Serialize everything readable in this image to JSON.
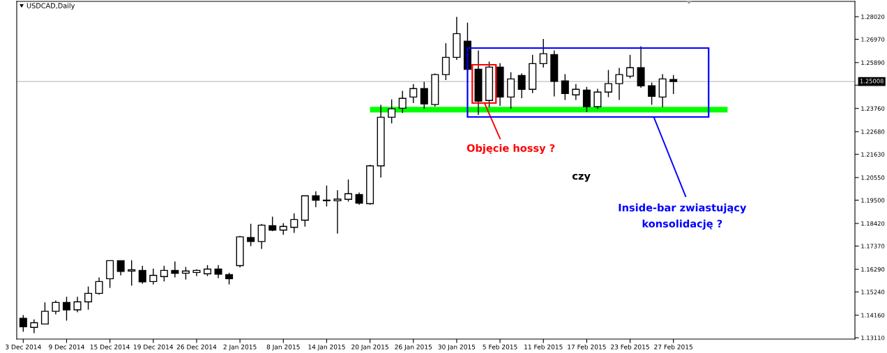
{
  "chart_data": {
    "type": "candlestick",
    "title": "USDCAD,Daily",
    "categories": [
      "3 Dec 2014",
      null,
      null,
      null,
      "9 Dec 2014",
      null,
      null,
      null,
      "15 Dec 2014",
      null,
      null,
      null,
      "19 Dec 2014",
      null,
      null,
      null,
      "26 Dec 2014",
      null,
      null,
      null,
      "2 Jan 2015",
      null,
      null,
      null,
      "8 Jan 2015",
      null,
      null,
      null,
      "14 Jan 2015",
      null,
      null,
      null,
      "20 Jan 2015",
      null,
      null,
      null,
      "26 Jan 2015",
      null,
      null,
      null,
      "30 Jan 2015",
      null,
      null,
      null,
      "5 Feb 2015",
      null,
      null,
      null,
      "11 Feb 2015",
      null,
      null,
      null,
      "17 Feb 2015",
      null,
      null,
      null,
      "23 Feb 2015",
      null,
      null,
      null,
      "27 Feb 2015",
      null,
      null,
      null,
      null,
      null,
      null,
      null,
      null,
      null,
      null,
      null,
      null,
      null,
      null,
      null,
      null
    ],
    "ohlc": [
      [
        1.1401,
        1.1414,
        1.1341,
        1.1362
      ],
      [
        1.1359,
        1.1394,
        1.1335,
        1.1381
      ],
      [
        1.1375,
        1.1473,
        1.1375,
        1.1434
      ],
      [
        1.1434,
        1.1482,
        1.1422,
        1.1475
      ],
      [
        1.1475,
        1.1499,
        1.1393,
        1.1441
      ],
      [
        1.1441,
        1.1499,
        1.1432,
        1.1478
      ],
      [
        1.1478,
        1.1547,
        1.1444,
        1.1517
      ],
      [
        1.1517,
        1.1589,
        1.1513,
        1.1572
      ],
      [
        1.1585,
        1.1669,
        1.1545,
        1.1669
      ],
      [
        1.1669,
        1.1669,
        1.1603,
        1.1619
      ],
      [
        1.1621,
        1.1669,
        1.1555,
        1.1627
      ],
      [
        1.1624,
        1.1643,
        1.1564,
        1.1571
      ],
      [
        1.1572,
        1.163,
        1.1561,
        1.1601
      ],
      [
        1.1595,
        1.1643,
        1.1575,
        1.1624
      ],
      [
        1.1624,
        1.1663,
        1.1593,
        1.161
      ],
      [
        1.1611,
        1.1637,
        1.1584,
        1.1621
      ],
      [
        1.1614,
        1.1627,
        1.16,
        1.1624
      ],
      [
        1.1608,
        1.1646,
        1.16,
        1.163
      ],
      [
        1.163,
        1.1646,
        1.159,
        1.1606
      ],
      [
        1.1604,
        1.1611,
        1.1561,
        1.1585
      ],
      [
        1.1646,
        1.1782,
        1.164,
        1.178
      ],
      [
        1.1776,
        1.1838,
        1.1739,
        1.1758
      ],
      [
        1.1758,
        1.1837,
        1.1726,
        1.1834
      ],
      [
        1.1831,
        1.1871,
        1.1808,
        1.1811
      ],
      [
        1.1811,
        1.1841,
        1.1791,
        1.1828
      ],
      [
        1.1824,
        1.1886,
        1.18,
        1.186
      ],
      [
        1.1857,
        1.197,
        1.1829,
        1.197
      ],
      [
        1.197,
        1.1989,
        1.192,
        1.195
      ],
      [
        1.195,
        1.2016,
        1.1923,
        1.1947
      ],
      [
        1.1947,
        1.1994,
        1.1797,
        1.1955
      ],
      [
        1.1954,
        1.2044,
        1.1946,
        1.198
      ],
      [
        1.1976,
        1.1983,
        1.1931,
        1.1936
      ],
      [
        1.1934,
        1.2112,
        1.1931,
        1.2109
      ],
      [
        1.2109,
        1.2391,
        1.2057,
        1.2335
      ],
      [
        1.2335,
        1.2416,
        1.2309,
        1.2374
      ],
      [
        1.2377,
        1.2455,
        1.2357,
        1.2423
      ],
      [
        1.2429,
        1.2487,
        1.2403,
        1.2468
      ],
      [
        1.2468,
        1.2497,
        1.2377,
        1.2397
      ],
      [
        1.2394,
        1.2536,
        1.2387,
        1.2533
      ],
      [
        1.2533,
        1.2677,
        1.251,
        1.2613
      ],
      [
        1.2613,
        1.2799,
        1.2604,
        1.2723
      ],
      [
        1.2688,
        1.2772,
        1.2558,
        1.2558
      ],
      [
        1.2558,
        1.2643,
        1.2348,
        1.241
      ],
      [
        1.2413,
        1.2591,
        1.2384,
        1.2568
      ],
      [
        1.2568,
        1.2584,
        1.239,
        1.2429
      ],
      [
        1.2429,
        1.2542,
        1.2377,
        1.2513
      ],
      [
        1.2529,
        1.2536,
        1.2426,
        1.2465
      ],
      [
        1.2465,
        1.2623,
        1.2449,
        1.2584
      ],
      [
        1.2584,
        1.2696,
        1.2568,
        1.263
      ],
      [
        1.2626,
        1.2643,
        1.2434,
        1.2502
      ],
      [
        1.2504,
        1.2533,
        1.2418,
        1.2445
      ],
      [
        1.2439,
        1.2487,
        1.2418,
        1.2465
      ],
      [
        1.2461,
        1.2474,
        1.2361,
        1.2384
      ],
      [
        1.2384,
        1.2465,
        1.2376,
        1.2452
      ],
      [
        1.2452,
        1.2552,
        1.2431,
        1.2491
      ],
      [
        1.2491,
        1.2562,
        1.2418,
        1.2533
      ],
      [
        1.2526,
        1.2623,
        1.2518,
        1.2565
      ],
      [
        1.2565,
        1.2662,
        1.2474,
        1.2481
      ],
      [
        1.2481,
        1.2494,
        1.2395,
        1.2432
      ],
      [
        1.2429,
        1.2533,
        1.2384,
        1.2513
      ],
      [
        1.251,
        1.2529,
        1.2445,
        1.2501
      ],
      null,
      null,
      null,
      null,
      null,
      null,
      null,
      null,
      null,
      null,
      null,
      null,
      null,
      null,
      null,
      null
    ],
    "colors": [
      "#000000",
      "#ffffff",
      "#ffffff",
      "#ffffff",
      "#000000",
      "#ffffff",
      "#ffffff",
      "#ffffff",
      "#ffffff",
      "#000000",
      "#ffffff",
      "#000000",
      "#ffffff",
      "#ffffff",
      "#000000",
      "#ffffff",
      "#ffffff",
      "#ffffff",
      "#000000",
      "#000000",
      "#ffffff",
      "#000000",
      "#ffffff",
      "#000000",
      "#ffffff",
      "#ffffff",
      "#ffffff",
      "#000000",
      "#000000",
      "#ffffff",
      "#ffffff",
      "#000000",
      "#ffffff",
      "#ffffff",
      "#ffffff",
      "#ffffff",
      "#ffffff",
      "#000000",
      "#ffffff",
      "#ffffff",
      "#ffffff",
      "#000000",
      "#000000",
      "#ffffff",
      "#000000",
      "#ffffff",
      "#000000",
      "#ffffff",
      "#ffffff",
      "#000000",
      "#000000",
      "#ffffff",
      "#000000",
      "#ffffff",
      "#ffffff",
      "#ffffff",
      "#ffffff",
      "#000000",
      "#000000",
      "#ffffff",
      "#000000",
      null,
      null,
      null,
      null,
      null,
      null,
      null,
      null,
      null,
      null,
      null,
      null,
      null,
      null,
      null,
      null
    ],
    "series": [
      {
        "type": "line",
        "color": "#00ff00",
        "values": [
          null,
          null,
          null,
          null,
          null,
          null,
          null,
          null,
          null,
          null,
          null,
          null,
          null,
          null,
          null,
          null,
          null,
          null,
          null,
          null,
          null,
          null,
          null,
          null,
          null,
          null,
          null,
          null,
          null,
          null,
          null,
          null,
          1.237,
          1.237,
          1.237,
          1.237,
          1.237,
          1.237,
          1.237,
          1.237,
          1.237,
          1.237,
          1.237,
          1.237,
          1.237,
          1.237,
          1.237,
          1.237,
          1.237,
          1.237,
          1.237,
          1.237,
          1.237,
          1.237,
          1.237,
          1.237,
          1.237,
          1.237,
          1.237,
          1.237,
          1.237,
          1.237,
          1.237,
          1.237,
          1.237,
          1.237,
          null,
          null,
          null,
          null,
          null,
          null,
          null,
          null,
          null,
          null,
          null
        ]
      }
    ],
    "ref_lines": [
      {
        "axis": "y",
        "value": 1.25008,
        "label": "1.25008",
        "color": "#c0c0c0"
      }
    ],
    "ylim": [
      1.1305,
      1.2873
    ],
    "yticks": [
      {
        "value": 1.1311,
        "label": "1.13110"
      },
      {
        "value": 1.1416,
        "label": "1.14160"
      },
      {
        "value": 1.1524,
        "label": "1.15240"
      },
      {
        "value": 1.1629,
        "label": "1.16290"
      },
      {
        "value": 1.1737,
        "label": "1.17370"
      },
      {
        "value": 1.1842,
        "label": "1.18420"
      },
      {
        "value": 1.195,
        "label": "1.19500"
      },
      {
        "value": 1.2055,
        "label": "1.20550"
      },
      {
        "value": 1.2163,
        "label": "1.21630"
      },
      {
        "value": 1.2268,
        "label": "1.22680"
      },
      {
        "value": 1.2376,
        "label": "1.23760"
      },
      {
        "value": 1.2484,
        "label": null
      },
      {
        "value": 1.2589,
        "label": "1.25890"
      },
      {
        "value": 1.2697,
        "label": "1.26970"
      },
      {
        "value": 1.2802,
        "label": "1.28020"
      }
    ],
    "annotations": [
      "Objęcie hossy ?",
      "czy",
      "Inside-bar zwiastujący\nkonsolidację ?"
    ]
  }
}
